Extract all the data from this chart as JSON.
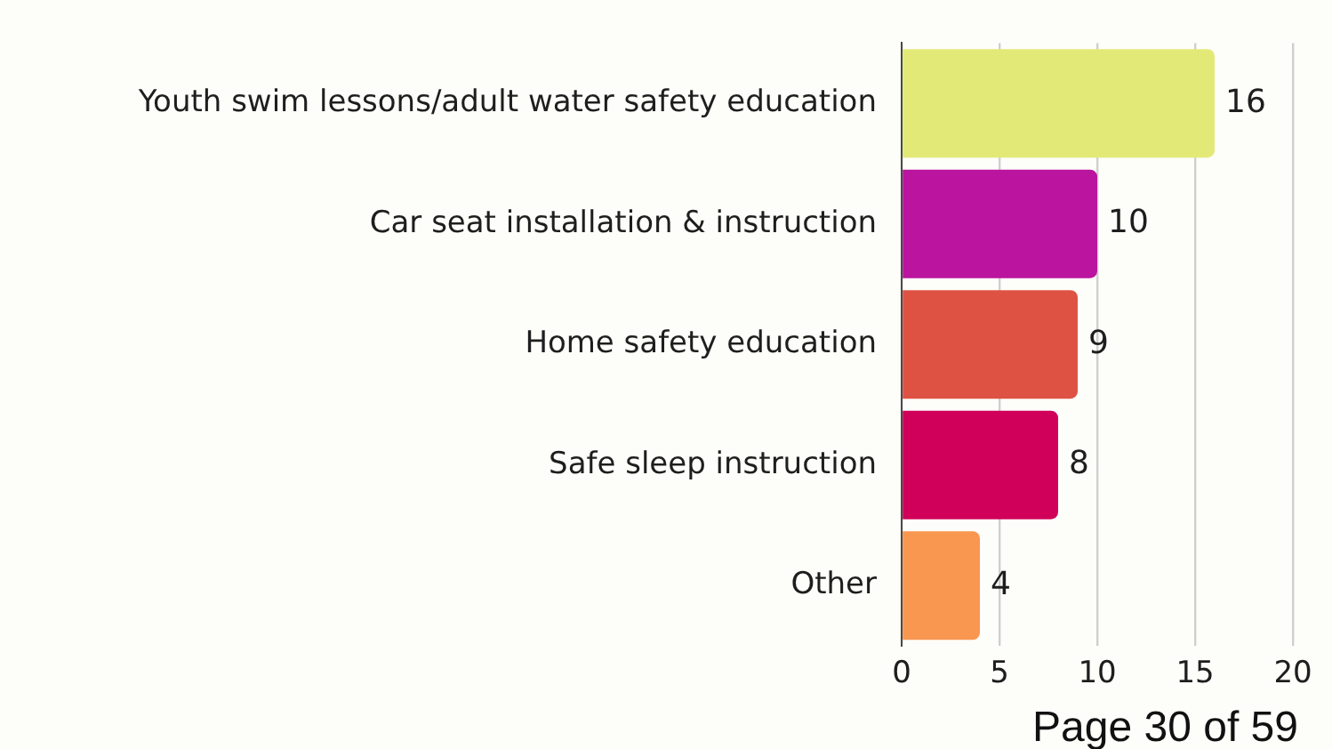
{
  "chart_data": {
    "type": "bar",
    "orientation": "horizontal",
    "categories": [
      "Youth swim lessons/adult water safety education",
      "Car seat installation & instruction",
      "Home safety education",
      "Safe sleep instruction",
      "Other"
    ],
    "values": [
      16,
      10,
      9,
      8,
      4
    ],
    "colors": [
      "#e3e977",
      "#bb149e",
      "#de5244",
      "#d0005a",
      "#f99650"
    ],
    "xlim": [
      0,
      20
    ],
    "xticks": [
      0,
      5,
      10,
      15,
      20
    ],
    "grid": "x",
    "data_labels": true,
    "annotations": [
      "Page 30 of 59"
    ]
  }
}
